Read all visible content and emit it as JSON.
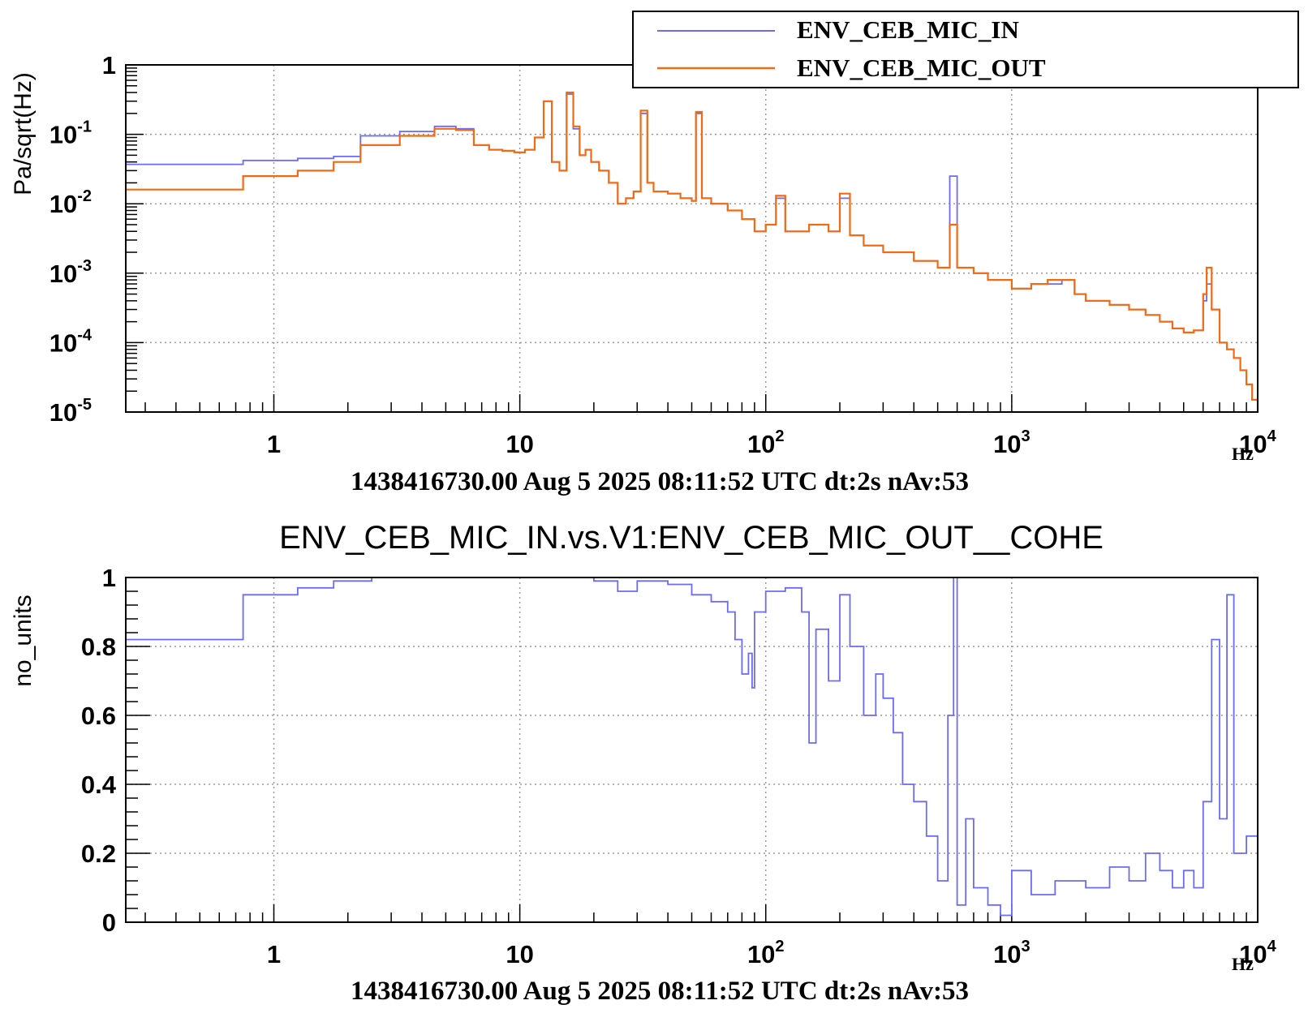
{
  "colors": {
    "series_in": "#6b6bf5",
    "series_out": "#f26a14",
    "axis": "#000000",
    "grid": "#9a9a9a",
    "background": "#ffffff"
  },
  "chart_data": [
    {
      "type": "line",
      "title": "",
      "xlabel": "1438416730.00 Aug 5 2025 08:11:52 UTC dt:2s nAv:53",
      "x_unit": "Hz",
      "ylabel": "Pa/sqrt(Hz)",
      "xscale": "log",
      "yscale": "log",
      "xlim": [
        0.25,
        10000
      ],
      "ylim": [
        1e-05,
        1
      ],
      "grid": true,
      "legend_position": "top-right",
      "x_tick_labels": [
        {
          "value": 1,
          "label": "1",
          "exp": ""
        },
        {
          "value": 10,
          "label": "10",
          "exp": ""
        },
        {
          "value": 100,
          "label": "10",
          "exp": "2"
        },
        {
          "value": 1000,
          "label": "10",
          "exp": "3"
        },
        {
          "value": 10000,
          "label": "10",
          "exp": "4"
        }
      ],
      "y_tick_labels": [
        {
          "value": 1,
          "label": "1",
          "exp": ""
        },
        {
          "value": 0.1,
          "label": "10",
          "exp": "-1"
        },
        {
          "value": 0.01,
          "label": "10",
          "exp": "-2"
        },
        {
          "value": 0.001,
          "label": "10",
          "exp": "-3"
        },
        {
          "value": 0.0001,
          "label": "10",
          "exp": "-4"
        },
        {
          "value": 1e-05,
          "label": "10",
          "exp": "-5"
        }
      ],
      "series": [
        {
          "name": "ENV_CEB_MIC_IN",
          "color": "#6b6bf5",
          "x": [
            0.25,
            0.75,
            1.25,
            1.75,
            2.25,
            3.25,
            4.5,
            5.5,
            6.5,
            7.5,
            8.5,
            9.5,
            10.5,
            11.5,
            12.5,
            13.5,
            14.5,
            15.5,
            16.5,
            17.5,
            18.5,
            19.5,
            21,
            23,
            25,
            27,
            29,
            31,
            33,
            35,
            40,
            45,
            50,
            52,
            55,
            60,
            70,
            80,
            90,
            100,
            110,
            120,
            150,
            180,
            200,
            220,
            250,
            300,
            400,
            500,
            560,
            600,
            700,
            800,
            1000,
            1200,
            1400,
            1600,
            1800,
            2000,
            2500,
            3000,
            3500,
            4000,
            4500,
            5000,
            5500,
            6000,
            6200,
            6500,
            7000,
            7500,
            8000,
            8500,
            9000,
            9500,
            10000
          ],
          "y": [
            0.037,
            0.042,
            0.045,
            0.048,
            0.095,
            0.11,
            0.13,
            0.12,
            0.07,
            0.06,
            0.058,
            0.055,
            0.06,
            0.09,
            0.3,
            0.04,
            0.03,
            0.38,
            0.12,
            0.05,
            0.06,
            0.04,
            0.03,
            0.02,
            0.01,
            0.012,
            0.015,
            0.2,
            0.02,
            0.015,
            0.014,
            0.012,
            0.011,
            0.2,
            0.012,
            0.01,
            0.008,
            0.006,
            0.004,
            0.005,
            0.012,
            0.004,
            0.005,
            0.004,
            0.012,
            0.0035,
            0.0025,
            0.002,
            0.0015,
            0.0012,
            0.025,
            0.0012,
            0.001,
            0.0008,
            0.0006,
            0.0007,
            0.0007,
            0.0008,
            0.0005,
            0.0004,
            0.00035,
            0.0003,
            0.00025,
            0.0002,
            0.00016,
            0.00014,
            0.00015,
            0.0004,
            0.0007,
            0.0003,
            0.0001,
            8e-05,
            6e-05,
            4e-05,
            2.5e-05,
            1.5e-05,
            1e-05
          ]
        },
        {
          "name": "ENV_CEB_MIC_OUT",
          "color": "#f26a14",
          "x": [
            0.25,
            0.75,
            1.25,
            1.75,
            2.25,
            3.25,
            4.5,
            5.5,
            6.5,
            7.5,
            8.5,
            9.5,
            10.5,
            11.5,
            12.5,
            13.5,
            14.5,
            15.5,
            16.5,
            17.5,
            18.5,
            19.5,
            21,
            23,
            25,
            27,
            29,
            31,
            33,
            35,
            40,
            45,
            50,
            52,
            55,
            60,
            70,
            80,
            90,
            100,
            110,
            120,
            150,
            180,
            200,
            220,
            250,
            300,
            400,
            500,
            560,
            600,
            700,
            800,
            1000,
            1200,
            1400,
            1600,
            1800,
            2000,
            2500,
            3000,
            3500,
            4000,
            4500,
            5000,
            5500,
            6000,
            6200,
            6500,
            7000,
            7500,
            8000,
            8500,
            9000,
            9500,
            10000
          ],
          "y": [
            0.016,
            0.025,
            0.03,
            0.04,
            0.07,
            0.095,
            0.12,
            0.115,
            0.07,
            0.06,
            0.058,
            0.055,
            0.06,
            0.09,
            0.3,
            0.04,
            0.03,
            0.4,
            0.13,
            0.05,
            0.06,
            0.04,
            0.03,
            0.02,
            0.01,
            0.012,
            0.015,
            0.22,
            0.02,
            0.015,
            0.014,
            0.012,
            0.011,
            0.21,
            0.012,
            0.01,
            0.008,
            0.006,
            0.004,
            0.005,
            0.013,
            0.004,
            0.005,
            0.004,
            0.014,
            0.0035,
            0.0025,
            0.002,
            0.0015,
            0.0012,
            0.005,
            0.0012,
            0.001,
            0.0008,
            0.0006,
            0.0007,
            0.0008,
            0.0008,
            0.0005,
            0.0004,
            0.00035,
            0.0003,
            0.00025,
            0.0002,
            0.00016,
            0.00014,
            0.00015,
            0.0005,
            0.0012,
            0.0003,
            0.0001,
            8e-05,
            6e-05,
            4e-05,
            2.5e-05,
            1.5e-05,
            1e-05
          ]
        }
      ]
    },
    {
      "type": "line",
      "title": "ENV_CEB_MIC_IN.vs.V1:ENV_CEB_MIC_OUT__COHE",
      "xlabel": "1438416730.00 Aug 5 2025 08:11:52 UTC dt:2s nAv:53",
      "x_unit": "Hz",
      "ylabel": "no_units",
      "xscale": "log",
      "yscale": "linear",
      "xlim": [
        0.25,
        10000
      ],
      "ylim": [
        0,
        1
      ],
      "grid": true,
      "x_tick_labels": [
        {
          "value": 1,
          "label": "1",
          "exp": ""
        },
        {
          "value": 10,
          "label": "10",
          "exp": ""
        },
        {
          "value": 100,
          "label": "10",
          "exp": "2"
        },
        {
          "value": 1000,
          "label": "10",
          "exp": "3"
        },
        {
          "value": 10000,
          "label": "10",
          "exp": "4"
        }
      ],
      "y_tick_labels": [
        {
          "value": 0,
          "label": "0"
        },
        {
          "value": 0.2,
          "label": "0.2"
        },
        {
          "value": 0.4,
          "label": "0.4"
        },
        {
          "value": 0.6,
          "label": "0.6"
        },
        {
          "value": 0.8,
          "label": "0.8"
        },
        {
          "value": 1,
          "label": "1"
        }
      ],
      "series": [
        {
          "name": "",
          "color": "#6b6bf5",
          "x": [
            0.25,
            0.75,
            1.25,
            1.75,
            2.5,
            5,
            10,
            20,
            25,
            30,
            40,
            50,
            60,
            70,
            75,
            80,
            85,
            88,
            90,
            100,
            120,
            140,
            150,
            160,
            180,
            200,
            220,
            250,
            280,
            300,
            330,
            360,
            400,
            450,
            500,
            550,
            580,
            600,
            650,
            700,
            800,
            900,
            1000,
            1200,
            1500,
            2000,
            2500,
            3000,
            3500,
            4000,
            4500,
            5000,
            5500,
            6000,
            6500,
            7000,
            7500,
            8000,
            9000,
            10000
          ],
          "y": [
            0.82,
            0.95,
            0.97,
            0.99,
            1.0,
            1.0,
            1.0,
            0.99,
            0.96,
            0.99,
            0.98,
            0.95,
            0.93,
            0.9,
            0.82,
            0.72,
            0.78,
            0.68,
            0.9,
            0.96,
            0.97,
            0.9,
            0.52,
            0.85,
            0.7,
            0.95,
            0.8,
            0.6,
            0.72,
            0.65,
            0.55,
            0.4,
            0.35,
            0.25,
            0.12,
            0.6,
            1.0,
            0.05,
            0.3,
            0.1,
            0.05,
            0.02,
            0.15,
            0.08,
            0.12,
            0.1,
            0.16,
            0.12,
            0.2,
            0.15,
            0.1,
            0.15,
            0.1,
            0.35,
            0.82,
            0.3,
            0.95,
            0.2,
            0.25,
            0.2
          ]
        }
      ]
    }
  ]
}
